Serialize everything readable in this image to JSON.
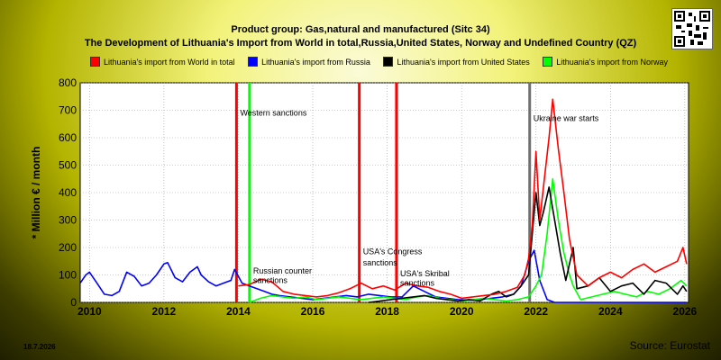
{
  "header": {
    "title": "Product group: Gas,natural and manufactured (Sitc 34)",
    "subtitle": "The Development of Lithuania's Import from World in total,Russia,United States, Norway and Undefined Country (QZ)"
  },
  "footer": {
    "date": "18.7.2026",
    "source": "Source: Eurostat"
  },
  "chart_data": {
    "type": "line",
    "title": "Product group: Gas,natural and manufactured (Sitc 34)",
    "subtitle": "The Development of Lithuania's Import from World in total,Russia,United States, Norway and Undefined Country (QZ)",
    "ylabel": "* Million € / month",
    "xlabel": "",
    "xlim": [
      2009.75,
      2026.1
    ],
    "ylim": [
      0,
      800
    ],
    "yticks": [
      0,
      100,
      200,
      300,
      400,
      500,
      600,
      700,
      800
    ],
    "xticks": [
      2010,
      2012,
      2014,
      2016,
      2018,
      2020,
      2022,
      2024,
      2026
    ],
    "grid": true,
    "legend_position": "top",
    "series": [
      {
        "name": "Lithuania's import from World in total",
        "color": "#ff0000",
        "points": [
          [
            2014.0,
            60
          ],
          [
            2014.3,
            65
          ],
          [
            2014.6,
            85
          ],
          [
            2014.9,
            75
          ],
          [
            2015.2,
            40
          ],
          [
            2015.5,
            30
          ],
          [
            2015.8,
            25
          ],
          [
            2016.1,
            20
          ],
          [
            2016.4,
            25
          ],
          [
            2016.7,
            35
          ],
          [
            2017.0,
            50
          ],
          [
            2017.3,
            70
          ],
          [
            2017.6,
            50
          ],
          [
            2017.9,
            60
          ],
          [
            2018.2,
            45
          ],
          [
            2018.5,
            70
          ],
          [
            2018.8,
            60
          ],
          [
            2019.1,
            55
          ],
          [
            2019.4,
            40
          ],
          [
            2019.7,
            30
          ],
          [
            2020.0,
            15
          ],
          [
            2020.3,
            20
          ],
          [
            2020.6,
            25
          ],
          [
            2020.9,
            30
          ],
          [
            2021.2,
            40
          ],
          [
            2021.5,
            55
          ],
          [
            2021.7,
            100
          ],
          [
            2021.8,
            160
          ],
          [
            2021.9,
            280
          ],
          [
            2022.0,
            550
          ],
          [
            2022.1,
            300
          ],
          [
            2022.2,
            420
          ],
          [
            2022.35,
            600
          ],
          [
            2022.45,
            740
          ],
          [
            2022.6,
            560
          ],
          [
            2022.75,
            400
          ],
          [
            2022.9,
            230
          ],
          [
            2023.1,
            100
          ],
          [
            2023.4,
            60
          ],
          [
            2023.7,
            90
          ],
          [
            2024.0,
            110
          ],
          [
            2024.3,
            90
          ],
          [
            2024.6,
            120
          ],
          [
            2024.9,
            140
          ],
          [
            2025.2,
            110
          ],
          [
            2025.5,
            130
          ],
          [
            2025.8,
            150
          ],
          [
            2025.95,
            200
          ],
          [
            2026.05,
            140
          ]
        ]
      },
      {
        "name": "Lithuania's import from Russia",
        "color": "#0000ff",
        "points": [
          [
            2009.75,
            70
          ],
          [
            2009.9,
            100
          ],
          [
            2010.0,
            110
          ],
          [
            2010.2,
            70
          ],
          [
            2010.4,
            30
          ],
          [
            2010.6,
            25
          ],
          [
            2010.8,
            40
          ],
          [
            2011.0,
            110
          ],
          [
            2011.2,
            95
          ],
          [
            2011.4,
            60
          ],
          [
            2011.6,
            70
          ],
          [
            2011.8,
            100
          ],
          [
            2012.0,
            140
          ],
          [
            2012.1,
            145
          ],
          [
            2012.3,
            90
          ],
          [
            2012.5,
            75
          ],
          [
            2012.7,
            110
          ],
          [
            2012.9,
            130
          ],
          [
            2013.0,
            100
          ],
          [
            2013.2,
            75
          ],
          [
            2013.4,
            60
          ],
          [
            2013.6,
            70
          ],
          [
            2013.8,
            80
          ],
          [
            2013.9,
            120
          ],
          [
            2014.1,
            70
          ],
          [
            2014.3,
            60
          ],
          [
            2014.5,
            50
          ],
          [
            2014.7,
            40
          ],
          [
            2014.9,
            30
          ],
          [
            2015.1,
            25
          ],
          [
            2015.4,
            20
          ],
          [
            2015.7,
            15
          ],
          [
            2016.0,
            10
          ],
          [
            2016.3,
            15
          ],
          [
            2016.6,
            20
          ],
          [
            2016.9,
            25
          ],
          [
            2017.2,
            20
          ],
          [
            2017.5,
            30
          ],
          [
            2017.8,
            25
          ],
          [
            2018.1,
            20
          ],
          [
            2018.4,
            20
          ],
          [
            2018.7,
            60
          ],
          [
            2019.0,
            40
          ],
          [
            2019.3,
            20
          ],
          [
            2019.6,
            15
          ],
          [
            2019.9,
            10
          ],
          [
            2020.2,
            8
          ],
          [
            2020.5,
            10
          ],
          [
            2020.8,
            15
          ],
          [
            2021.1,
            20
          ],
          [
            2021.4,
            30
          ],
          [
            2021.6,
            60
          ],
          [
            2021.8,
            150
          ],
          [
            2021.95,
            190
          ],
          [
            2022.1,
            80
          ],
          [
            2022.3,
            10
          ],
          [
            2022.5,
            0
          ],
          [
            2023.0,
            0
          ],
          [
            2024.0,
            0
          ],
          [
            2025.0,
            0
          ],
          [
            2026.05,
            0
          ]
        ]
      },
      {
        "name": "Lithuania's import from United States",
        "color": "#000000",
        "points": [
          [
            2017.5,
            0
          ],
          [
            2017.8,
            5
          ],
          [
            2018.1,
            10
          ],
          [
            2018.4,
            15
          ],
          [
            2018.7,
            20
          ],
          [
            2019.0,
            25
          ],
          [
            2019.3,
            15
          ],
          [
            2019.6,
            10
          ],
          [
            2019.9,
            5
          ],
          [
            2020.2,
            10
          ],
          [
            2020.5,
            5
          ],
          [
            2020.8,
            30
          ],
          [
            2021.0,
            40
          ],
          [
            2021.2,
            20
          ],
          [
            2021.4,
            30
          ],
          [
            2021.6,
            60
          ],
          [
            2021.8,
            100
          ],
          [
            2021.9,
            250
          ],
          [
            2022.0,
            400
          ],
          [
            2022.1,
            280
          ],
          [
            2022.2,
            330
          ],
          [
            2022.35,
            420
          ],
          [
            2022.5,
            300
          ],
          [
            2022.65,
            180
          ],
          [
            2022.8,
            80
          ],
          [
            2023.0,
            200
          ],
          [
            2023.1,
            50
          ],
          [
            2023.4,
            60
          ],
          [
            2023.7,
            90
          ],
          [
            2024.0,
            40
          ],
          [
            2024.3,
            60
          ],
          [
            2024.6,
            70
          ],
          [
            2024.9,
            30
          ],
          [
            2025.2,
            80
          ],
          [
            2025.5,
            70
          ],
          [
            2025.8,
            30
          ],
          [
            2025.95,
            60
          ],
          [
            2026.05,
            40
          ]
        ]
      },
      {
        "name": "Lithuania's import from Norway",
        "color": "#00ff00",
        "points": [
          [
            2014.3,
            0
          ],
          [
            2014.6,
            15
          ],
          [
            2014.9,
            25
          ],
          [
            2015.2,
            20
          ],
          [
            2015.5,
            15
          ],
          [
            2015.8,
            20
          ],
          [
            2016.1,
            10
          ],
          [
            2016.4,
            15
          ],
          [
            2016.7,
            20
          ],
          [
            2017.0,
            15
          ],
          [
            2017.3,
            10
          ],
          [
            2017.6,
            15
          ],
          [
            2017.9,
            20
          ],
          [
            2018.2,
            15
          ],
          [
            2018.5,
            10
          ],
          [
            2018.8,
            20
          ],
          [
            2019.1,
            25
          ],
          [
            2019.4,
            15
          ],
          [
            2019.7,
            10
          ],
          [
            2020.0,
            5
          ],
          [
            2020.3,
            10
          ],
          [
            2020.6,
            15
          ],
          [
            2020.9,
            10
          ],
          [
            2021.2,
            5
          ],
          [
            2021.5,
            10
          ],
          [
            2021.8,
            20
          ],
          [
            2022.0,
            60
          ],
          [
            2022.15,
            100
          ],
          [
            2022.3,
            250
          ],
          [
            2022.45,
            450
          ],
          [
            2022.6,
            300
          ],
          [
            2022.75,
            180
          ],
          [
            2022.9,
            100
          ],
          [
            2023.0,
            60
          ],
          [
            2023.2,
            10
          ],
          [
            2023.5,
            20
          ],
          [
            2023.8,
            30
          ],
          [
            2024.1,
            40
          ],
          [
            2024.4,
            30
          ],
          [
            2024.7,
            20
          ],
          [
            2025.0,
            40
          ],
          [
            2025.3,
            30
          ],
          [
            2025.6,
            50
          ],
          [
            2025.9,
            80
          ],
          [
            2026.05,
            60
          ]
        ]
      }
    ],
    "vertical_markers": [
      {
        "x": 2013.95,
        "color": "#ff0000",
        "label": ""
      },
      {
        "x": 2014.3,
        "color": "#00ff00",
        "label": ""
      },
      {
        "x": 2017.25,
        "color": "#ff0000",
        "label": ""
      },
      {
        "x": 2018.25,
        "color": "#ff0000",
        "label": ""
      },
      {
        "x": 2021.83,
        "color": "#707070",
        "label": ""
      }
    ],
    "annotations": [
      {
        "x": 2014.0,
        "y": 680,
        "text": "Western sanctions"
      },
      {
        "x": 2014.35,
        "y": 105,
        "text": "Russian counter"
      },
      {
        "x": 2014.35,
        "y": 70,
        "text": "sanctions"
      },
      {
        "x": 2017.3,
        "y": 175,
        "text": "USA's Congress"
      },
      {
        "x": 2017.3,
        "y": 135,
        "text": "sanctions"
      },
      {
        "x": 2018.3,
        "y": 95,
        "text": "USA's Skribal"
      },
      {
        "x": 2018.3,
        "y": 60,
        "text": "sanctions"
      },
      {
        "x": 2021.88,
        "y": 660,
        "text": "Ukraine war starts"
      }
    ]
  }
}
